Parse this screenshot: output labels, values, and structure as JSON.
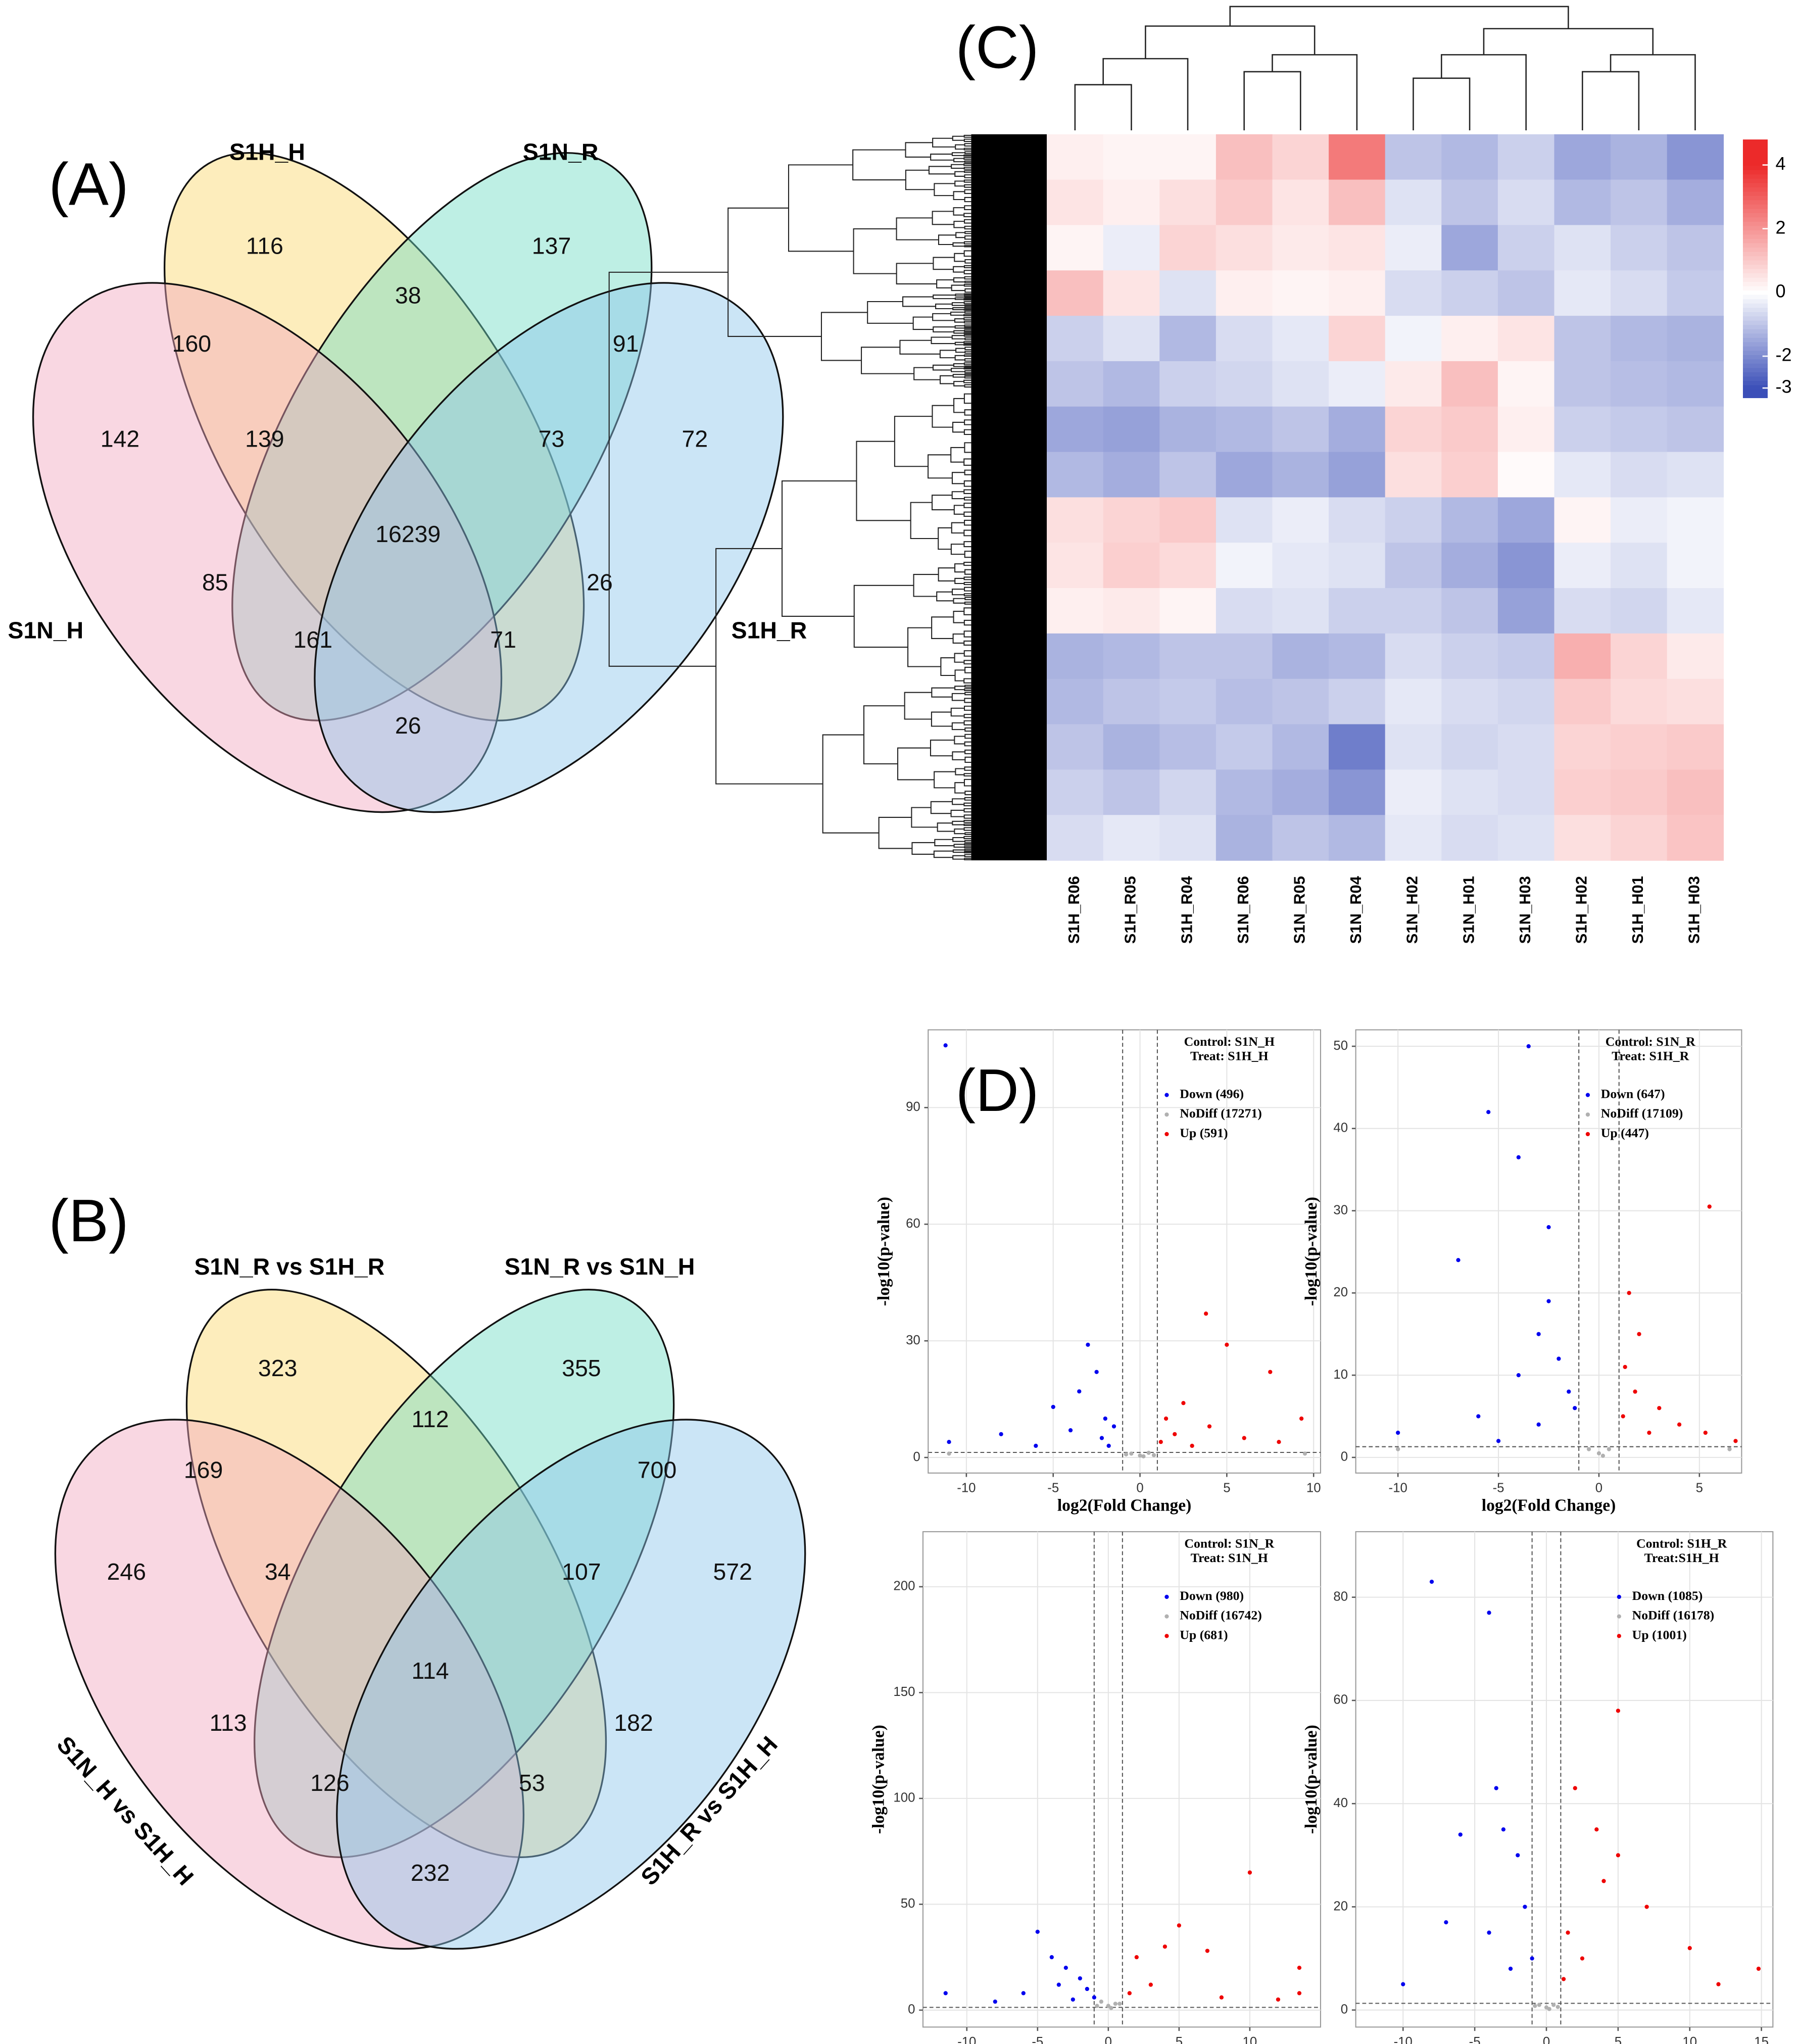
{
  "chart_data": [
    {
      "type": "venn",
      "panel_label": "(A)",
      "sets": [
        "S1H_H",
        "S1N_R",
        "S1N_H",
        "S1H_R"
      ],
      "colors": [
        "#fbd86a",
        "#6fdcc4",
        "#f2a6bf",
        "#8cc6ec"
      ],
      "values": [
        116,
        137,
        160,
        38,
        91,
        142,
        139,
        73,
        72,
        16239,
        85,
        26,
        161,
        71,
        26
      ]
    },
    {
      "type": "venn",
      "panel_label": "(B)",
      "sets": [
        "S1N_R vs S1H_R",
        "S1N_R vs S1N_H",
        "S1N_H vs S1H_H",
        "S1H_R vs S1H_H"
      ],
      "colors": [
        "#fbd86a",
        "#6fdcc4",
        "#f2a6bf",
        "#8cc6ec"
      ],
      "values": [
        323,
        355,
        169,
        112,
        700,
        246,
        34,
        107,
        572,
        114,
        113,
        182,
        126,
        53,
        232
      ]
    },
    {
      "type": "heatmap",
      "panel_label": "(C)",
      "categories": [
        "S1H_R06",
        "S1H_R05",
        "S1H_R04",
        "S1N_R06",
        "S1N_R05",
        "S1N_R04",
        "S1N_H02",
        "S1N_H01",
        "S1N_H03",
        "S1H_H02",
        "S1H_H01",
        "S1H_H03"
      ],
      "values": [
        [
          0.3,
          0.2,
          0.2,
          1.2,
          0.8,
          2.5,
          -1,
          -1.2,
          -0.8,
          -1.5,
          -1.3,
          -1.8
        ],
        [
          0.5,
          0.3,
          0.6,
          1,
          0.5,
          1.2,
          -0.5,
          -1,
          -0.6,
          -1.2,
          -1,
          -1.4
        ],
        [
          0.2,
          -0.3,
          0.8,
          0.6,
          0.4,
          0.5,
          -0.3,
          -1.5,
          -0.8,
          -0.5,
          -0.8,
          -1
        ],
        [
          1.2,
          0.5,
          -0.5,
          0.3,
          0.2,
          0.3,
          -0.6,
          -0.8,
          -1,
          -0.4,
          -0.6,
          -0.9
        ],
        [
          -0.8,
          -0.5,
          -1.2,
          -0.6,
          -0.4,
          0.8,
          -0.2,
          0.3,
          0.5,
          -1,
          -1.2,
          -1.3
        ],
        [
          -1,
          -1.2,
          -0.8,
          -0.7,
          -0.5,
          -0.3,
          0.4,
          1.2,
          0.2,
          -1,
          -1.1,
          -1.2
        ],
        [
          -1.5,
          -1.6,
          -1.3,
          -1.2,
          -1,
          -1.4,
          0.8,
          1,
          0.3,
          -0.8,
          -0.9,
          -1
        ],
        [
          -1.2,
          -1.4,
          -1,
          -1.5,
          -1.3,
          -1.6,
          0.6,
          0.9,
          0.1,
          -0.4,
          -0.6,
          -0.5
        ],
        [
          0.6,
          0.8,
          1,
          -0.5,
          -0.3,
          -0.6,
          -0.8,
          -1.2,
          -1.5,
          0.2,
          -0.3,
          -0.2
        ],
        [
          0.5,
          0.9,
          0.7,
          -0.2,
          -0.4,
          -0.5,
          -1,
          -1.4,
          -1.8,
          -0.3,
          -0.5,
          -0.2
        ],
        [
          0.3,
          0.4,
          0.2,
          -0.6,
          -0.5,
          -0.8,
          -0.8,
          -1,
          -1.6,
          -0.6,
          -0.7,
          -0.4
        ],
        [
          -1.3,
          -1.2,
          -1,
          -1,
          -1.3,
          -1.2,
          -0.6,
          -0.8,
          -0.9,
          1.5,
          0.8,
          0.4
        ],
        [
          -1.2,
          -1,
          -0.9,
          -1.1,
          -1,
          -0.8,
          -0.4,
          -0.6,
          -0.7,
          1,
          0.7,
          0.6
        ],
        [
          -1,
          -1.3,
          -1.1,
          -0.9,
          -1.2,
          -2.2,
          -0.5,
          -0.7,
          -0.6,
          0.8,
          0.9,
          1
        ],
        [
          -0.8,
          -1,
          -0.7,
          -1.2,
          -1.4,
          -1.8,
          -0.3,
          -0.5,
          -0.6,
          0.9,
          1,
          1.2
        ],
        [
          -0.6,
          -0.4,
          -0.5,
          -1.3,
          -1,
          -1.2,
          -0.4,
          -0.6,
          -0.5,
          0.6,
          0.8,
          1.1
        ]
      ],
      "colorscale": [
        [
          -3,
          "#3b4fb8"
        ],
        [
          0,
          "#ffffff"
        ],
        [
          4,
          "#ec2a2a"
        ]
      ],
      "clim": [
        -3.3,
        4.8
      ],
      "cticks": [
        4,
        2,
        0,
        -2,
        -3
      ]
    },
    {
      "type": "scatter",
      "panel_label": "(D)",
      "annotations": [
        "Control: S1N_H",
        "Treat: S1H_H"
      ],
      "xlabel": "log2(Fold Change)",
      "ylabel": "-log10(p-value)",
      "xlim": [
        -12.2,
        10.4
      ],
      "ylim": [
        -4,
        110
      ],
      "xticks": [
        -10,
        -5,
        0,
        5,
        10
      ],
      "yticks": [
        0,
        30,
        60,
        90
      ],
      "vlines": [
        -1,
        1
      ],
      "hline": 1.3,
      "grid": true,
      "series": [
        {
          "name": "Down (496)",
          "color": "#0000ee",
          "x": [
            -11.2,
            -3,
            -2.5,
            -3.5,
            -5,
            -8,
            -11,
            -2,
            -1.5,
            -4,
            -2.2,
            -6,
            -1.8
          ],
          "values": [
            106,
            29,
            22,
            17,
            13,
            6,
            4,
            10,
            8,
            7,
            5,
            3,
            3
          ]
        },
        {
          "name": "NoDiff (17271)",
          "color": "#b0b0b0",
          "x": [
            0,
            -0.5,
            0.5,
            0.2,
            -0.8,
            0.8,
            -11,
            9.5
          ],
          "values": [
            0.5,
            1,
            1.2,
            0.3,
            0.8,
            0.6,
            1,
            1
          ]
        },
        {
          "name": "Up (591)",
          "color": "#ee0000",
          "x": [
            3.8,
            5,
            7.5,
            2.5,
            1.5,
            9.3,
            4,
            2,
            6,
            1.2,
            3,
            8
          ],
          "values": [
            37,
            29,
            22,
            14,
            10,
            10,
            8,
            6,
            5,
            4,
            3,
            4
          ]
        }
      ]
    },
    {
      "type": "scatter",
      "annotations": [
        "Control: S1N_R",
        "Treat: S1H_R"
      ],
      "xlabel": "log2(Fold Change)",
      "ylabel": "-log10(p-value)",
      "xlim": [
        -12.1,
        7.1
      ],
      "ylim": [
        -1.9,
        52
      ],
      "xticks": [
        -10,
        -5,
        0,
        5
      ],
      "yticks": [
        0,
        10,
        20,
        30,
        40,
        50
      ],
      "vlines": [
        -1,
        1
      ],
      "hline": 1.3,
      "grid": true,
      "series": [
        {
          "name": "Down (647)",
          "color": "#0000ee",
          "x": [
            -3.5,
            -5.5,
            -4,
            -2.5,
            -7,
            -2.5,
            -3,
            -2,
            -4,
            -1.5,
            -6,
            -10,
            -3,
            -1.2,
            -5
          ],
          "values": [
            50,
            42,
            36.5,
            28,
            24,
            19,
            15,
            12,
            10,
            8,
            5,
            3,
            4,
            6,
            2
          ]
        },
        {
          "name": "NoDiff (17109)",
          "color": "#b0b0b0",
          "x": [
            0,
            -0.5,
            0.5,
            0.2,
            6.5,
            -10
          ],
          "values": [
            0.5,
            1,
            1,
            0.2,
            1,
            1
          ]
        },
        {
          "name": "Up (447)",
          "color": "#ee0000",
          "x": [
            5.5,
            1.5,
            2,
            1.3,
            1.8,
            3,
            4,
            5.3,
            1.2,
            2.5,
            6.8
          ],
          "values": [
            30.5,
            20,
            15,
            11,
            8,
            6,
            4,
            3,
            5,
            3,
            2
          ]
        }
      ]
    },
    {
      "type": "scatter",
      "annotations": [
        "Control: S1N_R",
        "Treat: S1N_H"
      ],
      "xlabel": "log2(Fold Change)",
      "ylabel": "-log10(p-value)",
      "xlim": [
        -13.1,
        15
      ],
      "ylim": [
        -8,
        226
      ],
      "xticks": [
        -10,
        -5,
        0,
        5,
        10
      ],
      "yticks": [
        0,
        50,
        100,
        150,
        200
      ],
      "vlines": [
        -1,
        1
      ],
      "hline": 1.3,
      "grid": true,
      "series": [
        {
          "name": "Down (980)",
          "color": "#0000ee",
          "x": [
            -11.5,
            -5,
            -4,
            -3,
            -2,
            -1.5,
            -6,
            -3.5,
            -1,
            -8,
            -2.5
          ],
          "values": [
            8,
            37,
            25,
            20,
            15,
            10,
            8,
            12,
            6,
            4,
            5
          ]
        },
        {
          "name": "NoDiff (16742)",
          "color": "#b0b0b0",
          "x": [
            0,
            -0.5,
            0.5,
            0.2,
            -0.8,
            0.8
          ],
          "values": [
            2,
            4,
            3,
            1,
            2,
            3
          ]
        },
        {
          "name": "Up (681)",
          "color": "#ee0000",
          "x": [
            10,
            5,
            4,
            2,
            7,
            13.5,
            3,
            1.5,
            8,
            12,
            13.5
          ],
          "values": [
            65,
            40,
            30,
            25,
            28,
            20,
            12,
            8,
            6,
            5,
            8
          ]
        }
      ]
    },
    {
      "type": "scatter",
      "annotations": [
        "Control: S1H_R",
        "Treat:S1H_H"
      ],
      "xlabel": "log2(Fold Change)",
      "ylabel": "-log10(p-value)",
      "xlim": [
        -13.3,
        15.8
      ],
      "ylim": [
        -3.3,
        92.7
      ],
      "xticks": [
        -10,
        -5,
        0,
        5,
        10,
        15
      ],
      "yticks": [
        0,
        20,
        40,
        60,
        80
      ],
      "vlines": [
        -1,
        1
      ],
      "hline": 1.3,
      "grid": true,
      "series": [
        {
          "name": "Down (1085)",
          "color": "#0000ee",
          "x": [
            -8,
            -4,
            -3.5,
            -6,
            -3,
            -2,
            -1.5,
            -4,
            -7,
            -1,
            -2.5,
            -10
          ],
          "values": [
            83,
            77,
            43,
            34,
            35,
            30,
            20,
            15,
            17,
            10,
            8,
            5
          ]
        },
        {
          "name": "NoDiff (16178)",
          "color": "#b0b0b0",
          "x": [
            0,
            -0.5,
            0.5,
            0.2,
            -0.8,
            0.8
          ],
          "values": [
            0.5,
            1,
            1,
            0.2,
            0.8,
            0.6
          ]
        },
        {
          "name": "Up (1001)",
          "color": "#ee0000",
          "x": [
            5,
            2,
            3.5,
            5,
            4,
            7,
            1.5,
            10,
            2.5,
            14.8,
            12,
            1.2
          ],
          "values": [
            58,
            43,
            35,
            30,
            25,
            20,
            15,
            12,
            10,
            8,
            5,
            6
          ]
        }
      ]
    }
  ]
}
